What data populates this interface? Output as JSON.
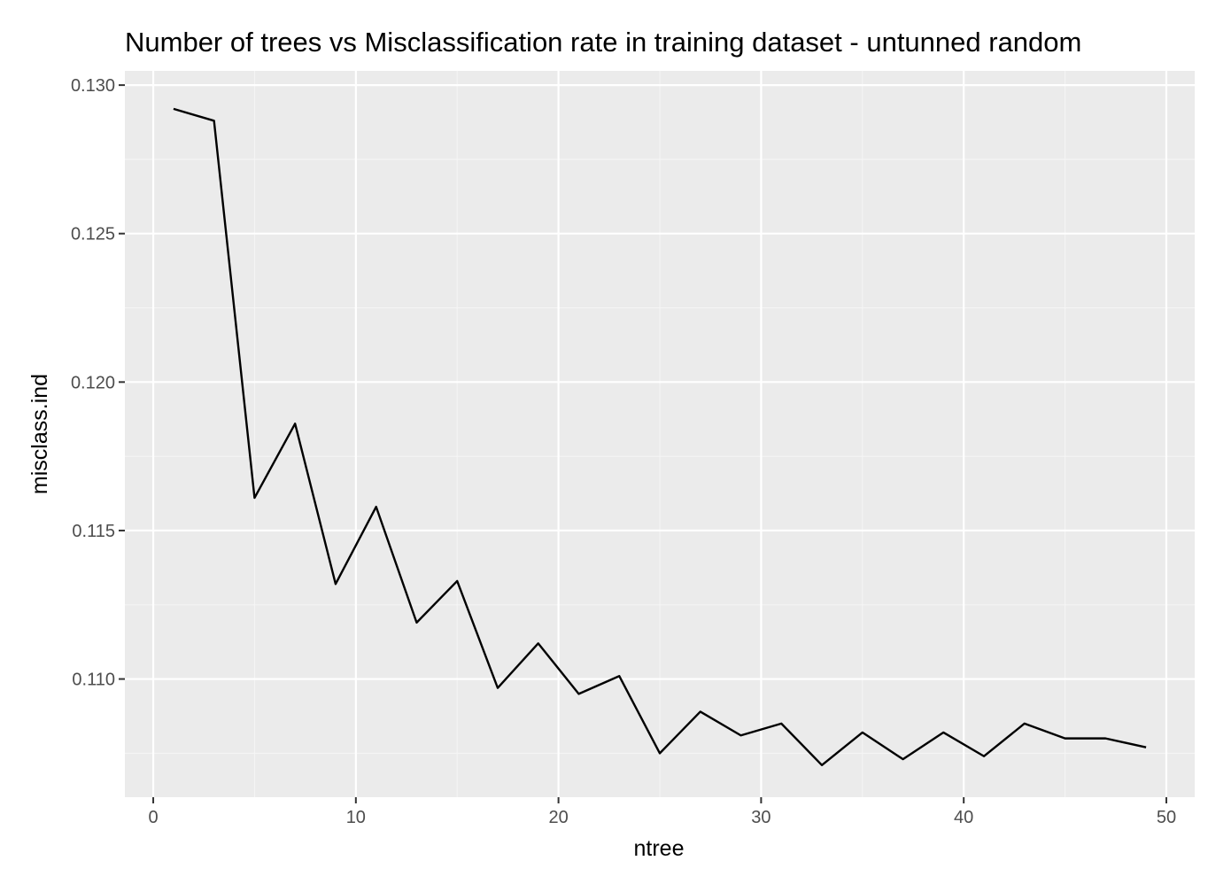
{
  "chart_data": {
    "type": "line",
    "title": "Number of trees vs Misclassification rate in training dataset - untunned random",
    "xlabel": "ntree",
    "ylabel": "misclass.ind",
    "xlim": [
      -1.4,
      51.4
    ],
    "ylim": [
      0.10602,
      0.13048
    ],
    "x_ticks": [
      0,
      10,
      20,
      30,
      40,
      50
    ],
    "x_tick_labels": [
      "0",
      "10",
      "20",
      "30",
      "40",
      "50"
    ],
    "y_ticks": [
      0.11,
      0.115,
      0.12,
      0.125,
      0.13
    ],
    "y_tick_labels": [
      "0.110",
      "0.115",
      "0.120",
      "0.125",
      "0.130"
    ],
    "x_minor": [
      5,
      15,
      25,
      35,
      45
    ],
    "y_minor": [
      0.1075,
      0.1125,
      0.1175,
      0.1225,
      0.1275
    ],
    "grid": true,
    "legend": "none",
    "series": [
      {
        "x": [
          1,
          3,
          5,
          7,
          9,
          11,
          13,
          15,
          17,
          19,
          21,
          23,
          25,
          27,
          29,
          31,
          33,
          35,
          37,
          39,
          41,
          43,
          45,
          47,
          49
        ],
        "y": [
          0.1292,
          0.1288,
          0.1161,
          0.1186,
          0.1132,
          0.1158,
          0.1119,
          0.1133,
          0.1097,
          0.1112,
          0.1095,
          0.1101,
          0.1075,
          0.1089,
          0.1081,
          0.1085,
          0.1071,
          0.1082,
          0.1073,
          0.1082,
          0.1074,
          0.1085,
          0.108,
          0.108,
          0.1077
        ]
      }
    ],
    "colors": {
      "panel_background": "#ebebeb",
      "grid_major": "#ffffff",
      "grid_minor": "#f5f5f5",
      "line": "#000000",
      "tick": "#333333",
      "tick_label": "#4d4d4d"
    }
  }
}
